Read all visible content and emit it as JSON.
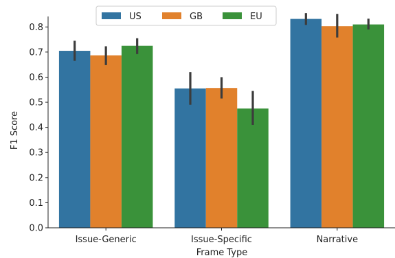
{
  "chart_data": {
    "type": "bar",
    "title": "",
    "xlabel": "Frame Type",
    "ylabel": "F1 Score",
    "categories": [
      "Issue-Generic",
      "Issue-Specific",
      "Narrative"
    ],
    "ylim": [
      0,
      0.88
    ],
    "yticks": [
      "0.0",
      "0.1",
      "0.2",
      "0.3",
      "0.4",
      "0.5",
      "0.6",
      "0.7",
      "0.8"
    ],
    "legend_position": "top-center",
    "grid": false,
    "series": [
      {
        "name": "US",
        "color": "#3274a1",
        "values": [
          0.705,
          0.555,
          0.832
        ],
        "err_low": [
          0.665,
          0.49,
          0.808
        ],
        "err_high": [
          0.745,
          0.62,
          0.855
        ]
      },
      {
        "name": "GB",
        "color": "#e1812c",
        "values": [
          0.687,
          0.557,
          0.803
        ],
        "err_low": [
          0.648,
          0.515,
          0.758
        ],
        "err_high": [
          0.723,
          0.6,
          0.852
        ]
      },
      {
        "name": "EU",
        "color": "#3a923a",
        "values": [
          0.725,
          0.475,
          0.81
        ],
        "err_low": [
          0.692,
          0.41,
          0.79
        ],
        "err_high": [
          0.755,
          0.545,
          0.833
        ]
      }
    ]
  }
}
